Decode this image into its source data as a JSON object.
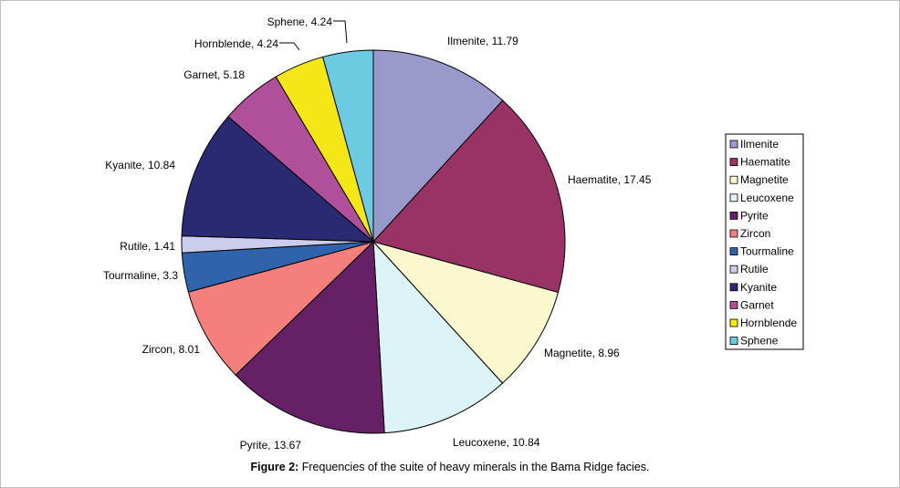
{
  "caption": {
    "label": "Figure 2:",
    "text": " Frequencies of the suite of heavy minerals in the Bama Ridge facies."
  },
  "chart_data": {
    "type": "pie",
    "title": "",
    "start": "top, clockwise",
    "legend_placement": "right",
    "slices": [
      {
        "name": "Ilmenite",
        "value": 11.79,
        "color": "#9999cc",
        "label": "Ilmenite, 11.79"
      },
      {
        "name": "Haematite",
        "value": 17.45,
        "color": "#993366",
        "label": "Haematite, 17.45"
      },
      {
        "name": "Magnetite",
        "value": 8.96,
        "color": "#fbf8cf",
        "label": "Magnetite, 8.96"
      },
      {
        "name": "Leucoxene",
        "value": 10.84,
        "color": "#dcf3f8",
        "label": "Leucoxene, 10.84"
      },
      {
        "name": "Pyrite",
        "value": 13.67,
        "color": "#662066",
        "label": "Pyrite, 13.67"
      },
      {
        "name": "Zircon",
        "value": 8.01,
        "color": "#f47f7c",
        "label": "Zircon, 8.01"
      },
      {
        "name": "Tourmaline",
        "value": 3.3,
        "color": "#2f64ad",
        "label": "Tourmaline, 3.3"
      },
      {
        "name": "Rutile",
        "value": 1.41,
        "color": "#ccccec",
        "label": "Rutile, 1.41"
      },
      {
        "name": "Kyanite",
        "value": 10.84,
        "color": "#2a2a72",
        "label": "Kyanite, 10.84"
      },
      {
        "name": "Garnet",
        "value": 5.18,
        "color": "#b0509a",
        "label": "Garnet, 5.18"
      },
      {
        "name": "Hornblende",
        "value": 4.24,
        "color": "#f5e617",
        "label": "Hornblende, 4.24"
      },
      {
        "name": "Sphene",
        "value": 4.24,
        "color": "#6ccbe0",
        "label": "Sphene, 4.24"
      }
    ]
  }
}
